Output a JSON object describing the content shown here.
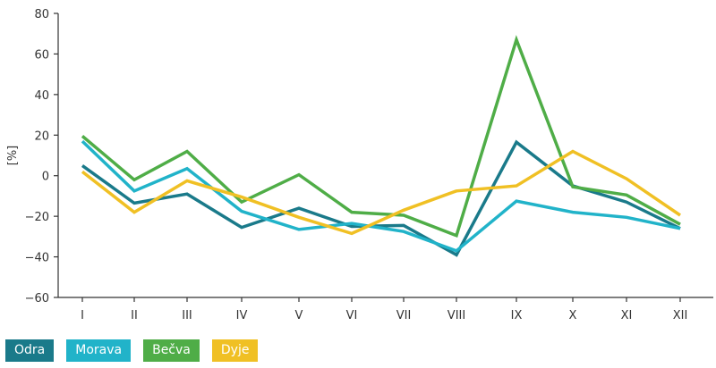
{
  "chart_data": {
    "type": "line",
    "title": "",
    "xlabel": "",
    "ylabel": "[%]",
    "categories": [
      "I",
      "II",
      "III",
      "IV",
      "V",
      "VI",
      "VII",
      "VIII",
      "IX",
      "X",
      "XI",
      "XII"
    ],
    "yticks": [
      80,
      60,
      40,
      20,
      0,
      -20,
      -40,
      -60
    ],
    "ytick_labels": [
      "80",
      "60",
      "40",
      "20",
      "0",
      "−20",
      "−40",
      "−60"
    ],
    "ylim": [
      -60,
      80
    ],
    "grid": false,
    "legend_position": "bottom-left",
    "series": [
      {
        "name": "Odra",
        "color": "#1a7a8a",
        "values": [
          5,
          -13.5,
          -9,
          -25.5,
          -16,
          -25,
          -24.5,
          -39,
          16.5,
          -5,
          -13,
          -26
        ]
      },
      {
        "name": "Morava",
        "color": "#21b3c9",
        "values": [
          17,
          -7.5,
          3.5,
          -17.5,
          -26.5,
          -23.5,
          -27.5,
          -37,
          -12.5,
          -18,
          -20.5,
          -26
        ]
      },
      {
        "name": "Bečva",
        "color": "#4fad47",
        "values": [
          19.5,
          -2,
          12,
          -13,
          0.5,
          -18,
          -19.5,
          -29.5,
          67,
          -5.5,
          -9.5,
          -24
        ]
      },
      {
        "name": "Dyje",
        "color": "#f0c024",
        "values": [
          2,
          -18,
          -2.5,
          -10.5,
          -20.5,
          -28.5,
          -17,
          -7.5,
          -5,
          12,
          -1.5,
          -19.5
        ]
      }
    ]
  }
}
